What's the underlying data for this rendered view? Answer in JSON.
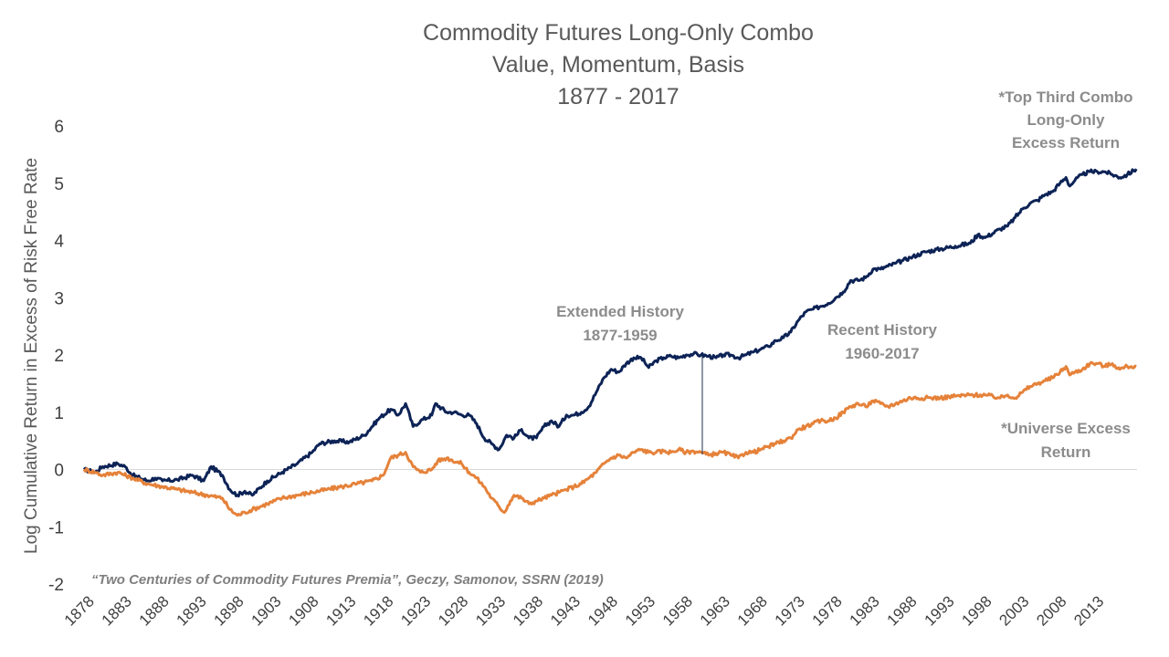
{
  "chart_data": {
    "type": "line",
    "title": [
      "Commodity Futures Long-Only Combo",
      "Value, Momentum, Basis",
      "1877 - 2017"
    ],
    "ylabel": "Log Cumulative Return in Excess of Risk Free Rate",
    "xlabel": "",
    "ylim": [
      -2,
      6
    ],
    "xlim": [
      1877.5,
      2018.3
    ],
    "yticks": [
      "6",
      "5",
      "4",
      "3",
      "2",
      "1",
      "0",
      "-1",
      "-2"
    ],
    "xticks": [
      "1878",
      "1883",
      "1888",
      "1893",
      "1898",
      "1903",
      "1908",
      "1913",
      "1918",
      "1923",
      "1928",
      "1933",
      "1938",
      "1943",
      "1948",
      "1953",
      "1958",
      "1963",
      "1968",
      "1973",
      "1978",
      "1983",
      "1988",
      "1993",
      "1998",
      "2003",
      "2008",
      "2013"
    ],
    "grid": false,
    "series": [
      {
        "name": "*Top Third Combo Long-Only Excess Return",
        "color": "#0d2356",
        "x": [
          1877.5,
          1879,
          1880,
          1882,
          1883,
          1884,
          1886,
          1887,
          1888,
          1890,
          1892,
          1893.5,
          1894.5,
          1896,
          1897,
          1898,
          1899,
          1900,
          1902,
          1904,
          1906,
          1908,
          1909,
          1911,
          1913,
          1915,
          1917,
          1918.5,
          1919.5,
          1920.5,
          1921.5,
          1922.5,
          1924,
          1924.5,
          1926,
          1927,
          1928,
          1929,
          1930,
          1931,
          1932,
          1933,
          1934,
          1935,
          1936,
          1937,
          1938,
          1939,
          1940,
          1941,
          1942,
          1943,
          1944,
          1945,
          1946,
          1947,
          1948,
          1949,
          1950,
          1951,
          1952,
          1953,
          1954,
          1955,
          1956,
          1957,
          1958,
          1959,
          1960,
          1961,
          1962,
          1963,
          1964,
          1965,
          1966,
          1967,
          1968,
          1969,
          1970,
          1971,
          1972,
          1973,
          1974,
          1975,
          1976,
          1977,
          1978,
          1979,
          1980,
          1981,
          1982,
          1983,
          1984,
          1985,
          1986,
          1987,
          1988,
          1990,
          1992,
          1994,
          1996,
          1997,
          1998,
          2000,
          2001,
          2002,
          2003,
          2004,
          2005,
          2006,
          2007,
          2008,
          2008.8,
          2009.3,
          2010,
          2011,
          2012,
          2013,
          2014,
          2015,
          2016,
          2017,
          2018.2
        ],
        "values": [
          0.0,
          -0.05,
          0.05,
          0.1,
          0.05,
          -0.1,
          -0.2,
          -0.15,
          -0.2,
          -0.18,
          -0.1,
          -0.2,
          0.05,
          -0.1,
          -0.35,
          -0.45,
          -0.38,
          -0.45,
          -0.2,
          -0.05,
          0.1,
          0.3,
          0.45,
          0.5,
          0.48,
          0.6,
          0.9,
          1.05,
          0.95,
          1.15,
          0.75,
          0.85,
          0.95,
          1.15,
          1.0,
          1.0,
          0.95,
          0.95,
          0.8,
          0.55,
          0.45,
          0.35,
          0.6,
          0.55,
          0.7,
          0.55,
          0.55,
          0.75,
          0.85,
          0.75,
          0.95,
          0.95,
          1.0,
          1.1,
          1.35,
          1.6,
          1.75,
          1.7,
          1.85,
          1.95,
          1.95,
          1.78,
          1.9,
          1.95,
          1.98,
          1.95,
          2.0,
          2.02,
          2.0,
          1.98,
          1.95,
          2.0,
          2.0,
          1.95,
          2.0,
          2.05,
          2.1,
          2.15,
          2.25,
          2.3,
          2.4,
          2.6,
          2.75,
          2.8,
          2.85,
          2.9,
          3.0,
          3.1,
          3.3,
          3.3,
          3.35,
          3.5,
          3.5,
          3.55,
          3.6,
          3.65,
          3.7,
          3.8,
          3.85,
          3.9,
          3.95,
          4.1,
          4.05,
          4.2,
          4.25,
          4.4,
          4.55,
          4.65,
          4.7,
          4.8,
          4.85,
          5.0,
          5.1,
          4.95,
          5.05,
          5.15,
          5.2,
          5.2,
          5.2,
          5.15,
          5.1,
          5.15,
          5.25
        ]
      },
      {
        "name": "*Universe Excess Return",
        "color": "#e5823a",
        "x": [
          1877.5,
          1879,
          1880,
          1882,
          1884,
          1886,
          1888,
          1890,
          1892,
          1894,
          1896,
          1897,
          1898,
          1899,
          1900,
          1902,
          1904,
          1906,
          1908,
          1910,
          1912,
          1914,
          1916,
          1917.5,
          1918.5,
          1919.5,
          1920.5,
          1921.5,
          1922.5,
          1924,
          1924.8,
          1926,
          1928,
          1929,
          1930,
          1931,
          1932,
          1933,
          1933.7,
          1934.5,
          1935,
          1936,
          1937,
          1938,
          1939,
          1940,
          1941,
          1942,
          1943,
          1944,
          1945,
          1946,
          1947,
          1948,
          1949,
          1950,
          1951,
          1952,
          1953,
          1954,
          1955,
          1956,
          1957,
          1958,
          1959,
          1960,
          1961,
          1962,
          1963,
          1964,
          1965,
          1966,
          1967,
          1968,
          1969,
          1970,
          1971,
          1972,
          1973,
          1974,
          1975,
          1976,
          1977,
          1978,
          1979,
          1980,
          1981,
          1982,
          1983,
          1984,
          1985,
          1986,
          1987,
          1988,
          1990,
          1992,
          1994,
          1996,
          1998,
          2000,
          2001,
          2002,
          2003,
          2004,
          2005,
          2006,
          2007,
          2008,
          2008.8,
          2009.3,
          2010,
          2011,
          2012,
          2013,
          2014,
          2015,
          2016,
          2017,
          2018.2
        ],
        "values": [
          0.0,
          -0.05,
          -0.1,
          -0.05,
          -0.15,
          -0.25,
          -0.3,
          -0.35,
          -0.4,
          -0.45,
          -0.5,
          -0.7,
          -0.8,
          -0.75,
          -0.7,
          -0.6,
          -0.5,
          -0.45,
          -0.4,
          -0.35,
          -0.3,
          -0.25,
          -0.2,
          -0.1,
          0.2,
          0.25,
          0.3,
          0.05,
          -0.05,
          0.0,
          0.15,
          0.2,
          0.1,
          -0.05,
          -0.15,
          -0.3,
          -0.5,
          -0.65,
          -0.75,
          -0.55,
          -0.45,
          -0.5,
          -0.6,
          -0.55,
          -0.5,
          -0.45,
          -0.4,
          -0.35,
          -0.3,
          -0.25,
          -0.15,
          -0.05,
          0.1,
          0.2,
          0.25,
          0.2,
          0.3,
          0.35,
          0.3,
          0.3,
          0.32,
          0.3,
          0.35,
          0.3,
          0.32,
          0.3,
          0.25,
          0.28,
          0.3,
          0.25,
          0.2,
          0.3,
          0.3,
          0.35,
          0.4,
          0.45,
          0.5,
          0.55,
          0.7,
          0.75,
          0.8,
          0.85,
          0.85,
          0.9,
          1.0,
          1.1,
          1.15,
          1.1,
          1.2,
          1.15,
          1.1,
          1.15,
          1.2,
          1.25,
          1.25,
          1.25,
          1.28,
          1.3,
          1.3,
          1.25,
          1.3,
          1.25,
          1.35,
          1.45,
          1.5,
          1.55,
          1.6,
          1.7,
          1.8,
          1.65,
          1.7,
          1.75,
          1.85,
          1.85,
          1.8,
          1.85,
          1.75,
          1.8,
          1.8
        ]
      }
    ],
    "annotations": {
      "top_series_label": [
        "*Top Third Combo",
        "Long-Only",
        "Excess Return"
      ],
      "universe_label": [
        "*Universe Excess",
        "Return"
      ],
      "extended_history": [
        "Extended History",
        "1877-1959"
      ],
      "recent_history": [
        "Recent History",
        "1960-2017"
      ],
      "source": "“Two Centuries of Commodity Futures Premia”, Geczy, Samonov, SSRN (2019)"
    }
  }
}
